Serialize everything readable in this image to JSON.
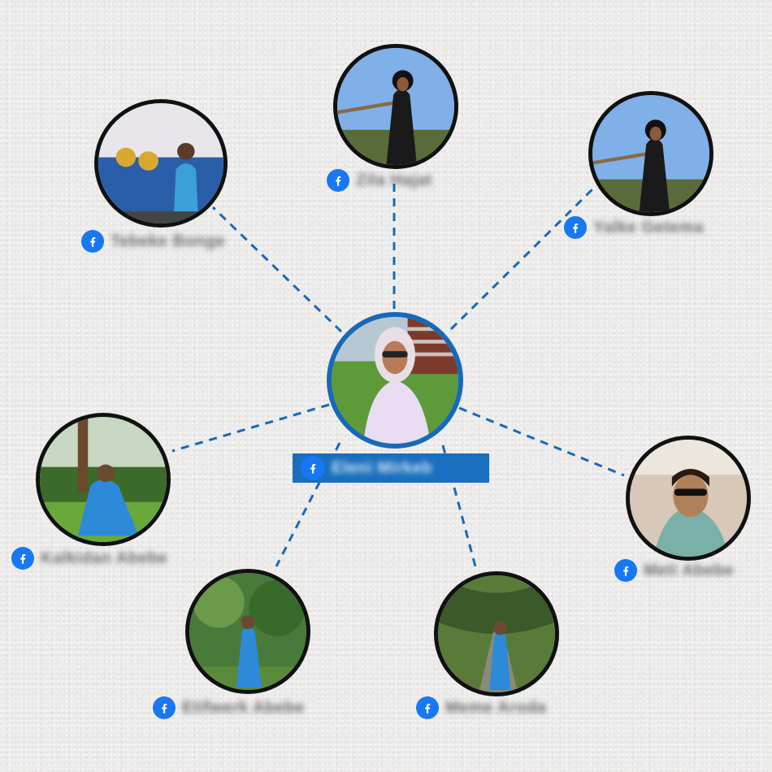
{
  "accent_color": "#1a6ebf",
  "connector_color": "#1769b8",
  "icon": "facebook-icon",
  "center": {
    "name": "Eleni Mirkeb",
    "photo": "woman-in-white-shawl"
  },
  "nodes": [
    {
      "id": "top",
      "name": "Zila Hajat",
      "photo": "woman-on-balcony"
    },
    {
      "id": "top-right",
      "name": "Yalke Getema",
      "photo": "woman-on-balcony"
    },
    {
      "id": "top-left",
      "name": "Tebeke Bonge",
      "photo": "marching-band"
    },
    {
      "id": "left",
      "name": "Kalkidan Abebe",
      "photo": "woman-in-garden"
    },
    {
      "id": "right",
      "name": "Meti Abebe",
      "photo": "car-selfie"
    },
    {
      "id": "bottom-left",
      "name": "Etifwerk Abebe",
      "photo": "woman-in-forest"
    },
    {
      "id": "bottom-right",
      "name": "Meme Aroda",
      "photo": "woman-on-path"
    }
  ]
}
